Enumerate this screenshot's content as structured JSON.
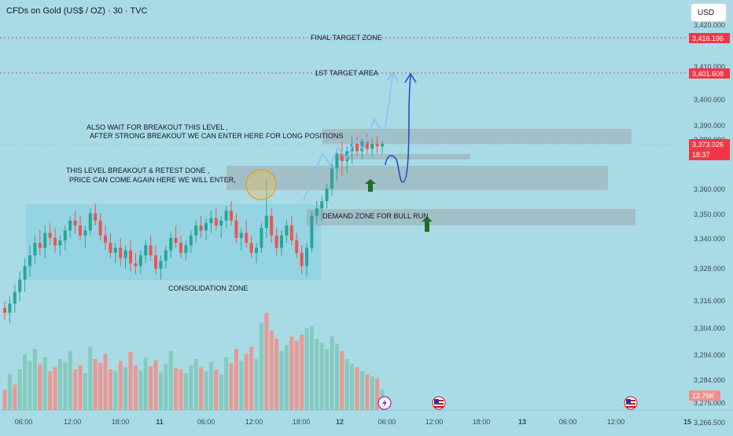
{
  "header": {
    "title": "CFDs on Gold (US$ / OZ) · 30 · TVC",
    "currency_button": "USD"
  },
  "colors": {
    "background": "#a9dbe6",
    "up": "#26a69a",
    "down": "#ef5350",
    "vol_up": "#7fc8b8",
    "vol_down": "#f0908a",
    "zone": "#9aa8ab",
    "consolidation": "#8fd2e2",
    "target_line": "#d94a4a",
    "arrow_light": "#8ec3ee",
    "arrow_dark": "#1f4fd1",
    "green_arrow": "#1f6b2a",
    "price_tag": "#f23645"
  },
  "chart_data": {
    "type": "candlestick",
    "symbol": "CFDs on Gold (US$ / OZ)",
    "interval": "30",
    "yaxis": {
      "ticks": [
        "3,420.000",
        "3,410.000",
        "3,400.000",
        "3,390.000",
        "3,380.000",
        "3,360.000",
        "3,350.000",
        "3,340.000",
        "3,328.000",
        "3,316.000",
        "3,304.000",
        "3,294.000",
        "3,284.000",
        "3,275.000",
        "3,266.500"
      ],
      "ylim": [
        3263,
        3425
      ]
    },
    "xaxis": {
      "ticks": [
        "06:00",
        "12:00",
        "18:00",
        "11",
        "06:00",
        "12:00",
        "18:00",
        "12",
        "06:00",
        "12:00",
        "18:00",
        "13",
        "06:00",
        "12:00",
        "15"
      ]
    },
    "price_labels": [
      {
        "text": "3,416.196",
        "value": 3416.196,
        "kind": "level"
      },
      {
        "text": "3,401.608",
        "value": 3401.608,
        "kind": "level"
      },
      {
        "text": "3,373.026",
        "value": 3373.026,
        "kind": "last",
        "countdown": "18:37"
      }
    ],
    "volume_label": "12.76K",
    "target_lines": [
      {
        "label": "FINAL TARGET ZONE",
        "value": 3416.196
      },
      {
        "label": "1ST TARGET AREA",
        "value": 3401.608
      }
    ],
    "zones": [
      {
        "label": "",
        "from": 3370,
        "to": 3375
      },
      {
        "label": "",
        "from": 3355,
        "to": 3365
      },
      {
        "label": "DEMAND ZONE FOR BULL RUN",
        "from": 3341,
        "to": 3348
      }
    ],
    "annotations": [
      "ALSO WAIT FOR BREAKOUT THIS LEVEL ,",
      "AFTER STRONG BREAKOUT WE CAN ENTER HERE FOR LONG POSITIONS",
      "THIS LEVEL BREAKOUT & RETEST DONE ,",
      "PRICE CAN COME AGAIN HERE WE WILL ENTER,",
      "CONSOLIDATION ZONE"
    ],
    "candles": [
      [
        3307,
        3310,
        3302,
        3305
      ],
      [
        3305,
        3312,
        3301,
        3309
      ],
      [
        3309,
        3317,
        3305,
        3314
      ],
      [
        3314,
        3322,
        3310,
        3319
      ],
      [
        3319,
        3327,
        3314,
        3324
      ],
      [
        3324,
        3332,
        3320,
        3328
      ],
      [
        3328,
        3336,
        3325,
        3333
      ],
      [
        3333,
        3338,
        3328,
        3331
      ],
      [
        3331,
        3340,
        3327,
        3337
      ],
      [
        3337,
        3341,
        3332,
        3335
      ],
      [
        3335,
        3339,
        3329,
        3332
      ],
      [
        3332,
        3336,
        3328,
        3334
      ],
      [
        3334,
        3340,
        3330,
        3338
      ],
      [
        3338,
        3344,
        3335,
        3342
      ],
      [
        3342,
        3346,
        3337,
        3340
      ],
      [
        3340,
        3344,
        3334,
        3336
      ],
      [
        3336,
        3340,
        3331,
        3338
      ],
      [
        3338,
        3347,
        3336,
        3345
      ],
      [
        3345,
        3349,
        3340,
        3342
      ],
      [
        3342,
        3345,
        3334,
        3336
      ],
      [
        3336,
        3340,
        3330,
        3333
      ],
      [
        3333,
        3337,
        3327,
        3329
      ],
      [
        3329,
        3333,
        3325,
        3331
      ],
      [
        3331,
        3335,
        3324,
        3327
      ],
      [
        3327,
        3332,
        3323,
        3330
      ],
      [
        3330,
        3334,
        3322,
        3325
      ],
      [
        3325,
        3329,
        3321,
        3324
      ],
      [
        3324,
        3330,
        3321,
        3328
      ],
      [
        3328,
        3334,
        3325,
        3332
      ],
      [
        3332,
        3336,
        3326,
        3328
      ],
      [
        3328,
        3332,
        3321,
        3323
      ],
      [
        3323,
        3328,
        3319,
        3326
      ],
      [
        3326,
        3332,
        3323,
        3330
      ],
      [
        3330,
        3337,
        3327,
        3335
      ],
      [
        3335,
        3340,
        3331,
        3333
      ],
      [
        3333,
        3336,
        3327,
        3329
      ],
      [
        3329,
        3334,
        3326,
        3332
      ],
      [
        3332,
        3338,
        3329,
        3336
      ],
      [
        3336,
        3342,
        3333,
        3340
      ],
      [
        3340,
        3344,
        3335,
        3338
      ],
      [
        3338,
        3343,
        3334,
        3341
      ],
      [
        3341,
        3346,
        3337,
        3343
      ],
      [
        3343,
        3347,
        3338,
        3340
      ],
      [
        3340,
        3344,
        3335,
        3342
      ],
      [
        3342,
        3348,
        3339,
        3346
      ],
      [
        3346,
        3350,
        3340,
        3342
      ],
      [
        3342,
        3345,
        3333,
        3335
      ],
      [
        3335,
        3339,
        3330,
        3337
      ],
      [
        3337,
        3342,
        3331,
        3333
      ],
      [
        3333,
        3336,
        3327,
        3329
      ],
      [
        3329,
        3333,
        3325,
        3331
      ],
      [
        3331,
        3341,
        3329,
        3339
      ],
      [
        3339,
        3359,
        3335,
        3344
      ],
      [
        3344,
        3347,
        3333,
        3336
      ],
      [
        3336,
        3339,
        3328,
        3331
      ],
      [
        3331,
        3338,
        3328,
        3336
      ],
      [
        3336,
        3342,
        3333,
        3340
      ],
      [
        3340,
        3344,
        3332,
        3334
      ],
      [
        3334,
        3337,
        3327,
        3329
      ],
      [
        3329,
        3332,
        3321,
        3324
      ],
      [
        3324,
        3333,
        3320,
        3331
      ],
      [
        3331,
        3346,
        3329,
        3344
      ],
      [
        3344,
        3350,
        3341,
        3347
      ],
      [
        3347,
        3352,
        3342,
        3350
      ],
      [
        3350,
        3357,
        3347,
        3355
      ],
      [
        3355,
        3365,
        3352,
        3363
      ],
      [
        3363,
        3371,
        3358,
        3369
      ],
      [
        3369,
        3374,
        3360,
        3366
      ],
      [
        3366,
        3372,
        3361,
        3370
      ],
      [
        3370,
        3376,
        3365,
        3373
      ],
      [
        3373,
        3376,
        3368,
        3370
      ],
      [
        3370,
        3375,
        3367,
        3374
      ],
      [
        3374,
        3377,
        3369,
        3371
      ],
      [
        3371,
        3375,
        3368,
        3373
      ],
      [
        3373,
        3376,
        3369,
        3372
      ],
      [
        3372,
        3374,
        3369,
        3373
      ]
    ],
    "volumes": [
      [
        20,
        0
      ],
      [
        35,
        1
      ],
      [
        25,
        0
      ],
      [
        40,
        1
      ],
      [
        55,
        1
      ],
      [
        48,
        1
      ],
      [
        60,
        1
      ],
      [
        45,
        0
      ],
      [
        52,
        1
      ],
      [
        38,
        0
      ],
      [
        42,
        0
      ],
      [
        50,
        1
      ],
      [
        47,
        1
      ],
      [
        58,
        1
      ],
      [
        40,
        0
      ],
      [
        44,
        0
      ],
      [
        36,
        1
      ],
      [
        62,
        1
      ],
      [
        50,
        0
      ],
      [
        46,
        0
      ],
      [
        55,
        0
      ],
      [
        40,
        0
      ],
      [
        38,
        1
      ],
      [
        48,
        0
      ],
      [
        42,
        1
      ],
      [
        57,
        0
      ],
      [
        44,
        0
      ],
      [
        39,
        1
      ],
      [
        51,
        1
      ],
      [
        43,
        0
      ],
      [
        49,
        0
      ],
      [
        37,
        1
      ],
      [
        45,
        1
      ],
      [
        58,
        1
      ],
      [
        41,
        0
      ],
      [
        40,
        0
      ],
      [
        36,
        1
      ],
      [
        44,
        1
      ],
      [
        50,
        1
      ],
      [
        42,
        0
      ],
      [
        38,
        1
      ],
      [
        47,
        1
      ],
      [
        40,
        0
      ],
      [
        35,
        1
      ],
      [
        52,
        1
      ],
      [
        46,
        0
      ],
      [
        60,
        0
      ],
      [
        48,
        1
      ],
      [
        55,
        0
      ],
      [
        62,
        0
      ],
      [
        50,
        1
      ],
      [
        85,
        1
      ],
      [
        95,
        0
      ],
      [
        78,
        0
      ],
      [
        70,
        0
      ],
      [
        58,
        1
      ],
      [
        64,
        1
      ],
      [
        72,
        0
      ],
      [
        68,
        0
      ],
      [
        74,
        0
      ],
      [
        80,
        1
      ],
      [
        82,
        1
      ],
      [
        70,
        1
      ],
      [
        66,
        1
      ],
      [
        60,
        1
      ],
      [
        72,
        1
      ],
      [
        65,
        1
      ],
      [
        58,
        0
      ],
      [
        50,
        1
      ],
      [
        45,
        1
      ],
      [
        42,
        0
      ],
      [
        38,
        1
      ],
      [
        35,
        0
      ],
      [
        33,
        1
      ],
      [
        31,
        0
      ],
      [
        20,
        1
      ]
    ]
  }
}
